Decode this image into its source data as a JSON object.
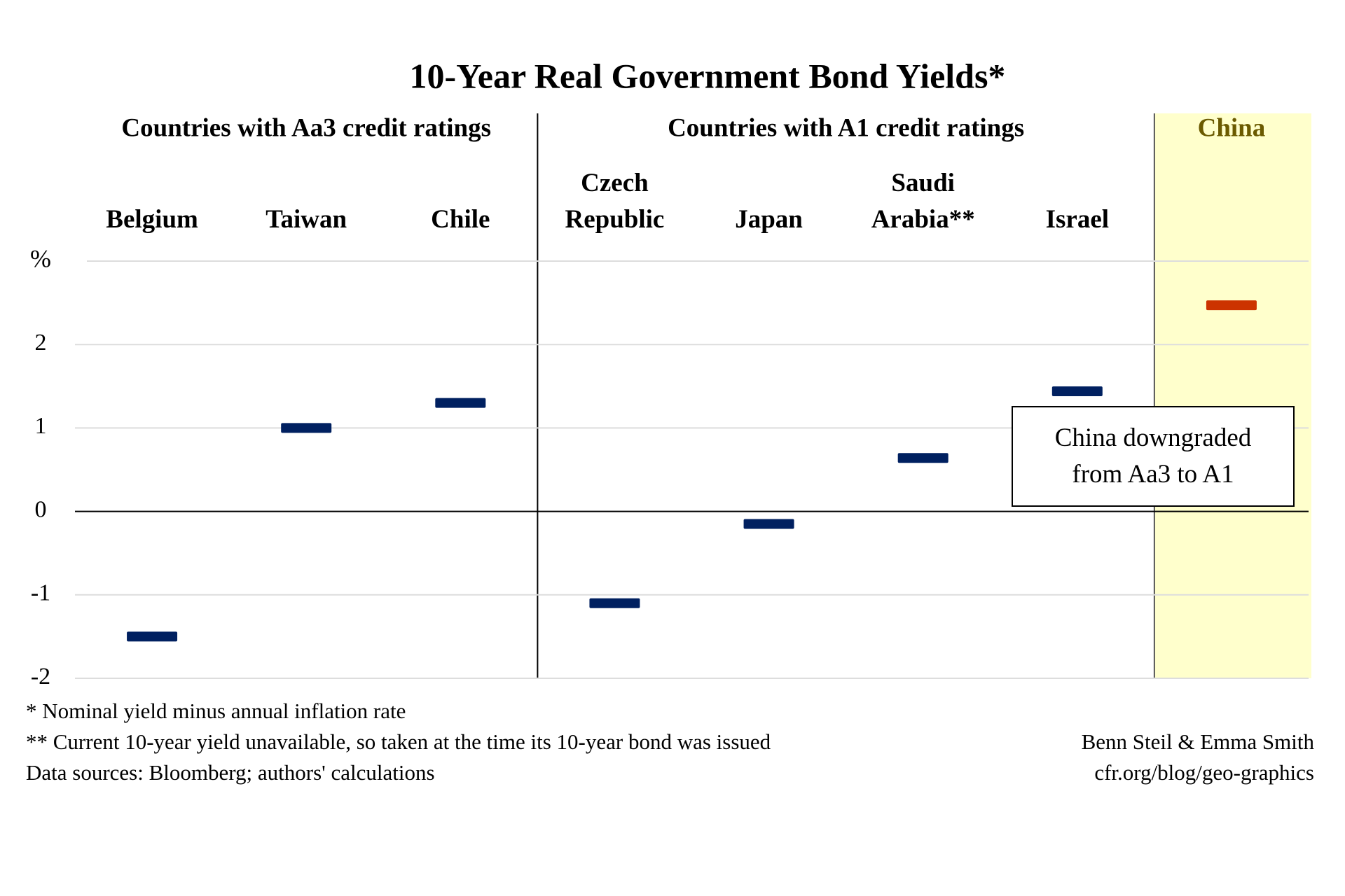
{
  "chart_data": {
    "type": "dash",
    "title": "10-Year Real Government Bond Yields*",
    "y_label": "%",
    "groups": [
      {
        "name": "Countries with Aa3 credit ratings",
        "members": [
          "Belgium",
          "Taiwan",
          "Chile"
        ]
      },
      {
        "name": "Countries with A1 credit ratings",
        "members": [
          "Czech Republic",
          "Japan",
          "Saudi Arabia**",
          "Israel"
        ]
      },
      {
        "name": "China",
        "members": [
          "China"
        ],
        "background": "#ffffcc"
      }
    ],
    "categories": [
      "Belgium",
      "Taiwan",
      "Chile",
      "Czech Republic",
      "Japan",
      "Saudi Arabia**",
      "Israel",
      null
    ],
    "values": [
      -1.5,
      1.0,
      1.3,
      -1.1,
      -0.15,
      0.64,
      1.44,
      2.47
    ],
    "colors": [
      "#002060",
      "#002060",
      "#002060",
      "#002060",
      "#002060",
      "#002060",
      "#002060",
      "#cc3300"
    ],
    "ylim": [
      -2,
      3
    ],
    "yticks": [
      -2,
      -1,
      0,
      1,
      2
    ],
    "grid": true,
    "annotation": "China downgraded from Aa3 to A1",
    "notes": [
      "* Nominal yield minus annual inflation rate",
      "** Current 10-year yield unavailable, so taken at the time its 10-year bond was issued",
      "Data sources: Bloomberg; authors' calculations"
    ],
    "credits": [
      "Benn Steil & Emma Smith",
      "cfr.org/blog/geo-graphics"
    ]
  }
}
